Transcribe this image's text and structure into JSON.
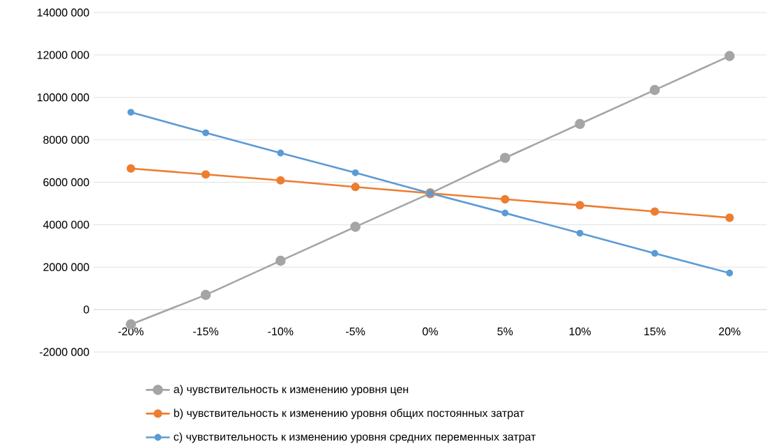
{
  "chart_data": {
    "type": "line",
    "categories": [
      "-20%",
      "-15%",
      "-10%",
      "-5%",
      "0%",
      "5%",
      "10%",
      "15%",
      "20%"
    ],
    "series": [
      {
        "name": "a) чувствительность к изменению уровня цен",
        "color": "#a5a5a5",
        "values": [
          -700000,
          690000,
          2300000,
          3900000,
          5480000,
          7150000,
          8750000,
          10350000,
          11950000
        ]
      },
      {
        "name": "b) чувствительность к изменению уровня общих постоянных затрат",
        "color": "#ed7d31",
        "values": [
          6650000,
          6370000,
          6090000,
          5780000,
          5480000,
          5200000,
          4920000,
          4620000,
          4330000
        ]
      },
      {
        "name": "c) чувствительность к изменению уровня средних переменных затрат",
        "color": "#5b9bd5",
        "values": [
          9300000,
          8330000,
          7380000,
          6450000,
          5480000,
          4550000,
          3600000,
          2650000,
          1720000
        ]
      }
    ],
    "ylim": [
      -2000000,
      14000000
    ],
    "yticks": [
      {
        "value": -2000000,
        "label": "-2000 000"
      },
      {
        "value": 0,
        "label": "0"
      },
      {
        "value": 2000000,
        "label": "2000 000"
      },
      {
        "value": 4000000,
        "label": "4000 000"
      },
      {
        "value": 6000000,
        "label": "6000 000"
      },
      {
        "value": 8000000,
        "label": "8000 000"
      },
      {
        "value": 10000000,
        "label": "10000 000"
      },
      {
        "value": 12000000,
        "label": "12000 000"
      },
      {
        "value": 14000000,
        "label": "14000 000"
      }
    ],
    "grid": "y",
    "legend": "bottom",
    "marker": "circle",
    "line_style": "solid"
  }
}
